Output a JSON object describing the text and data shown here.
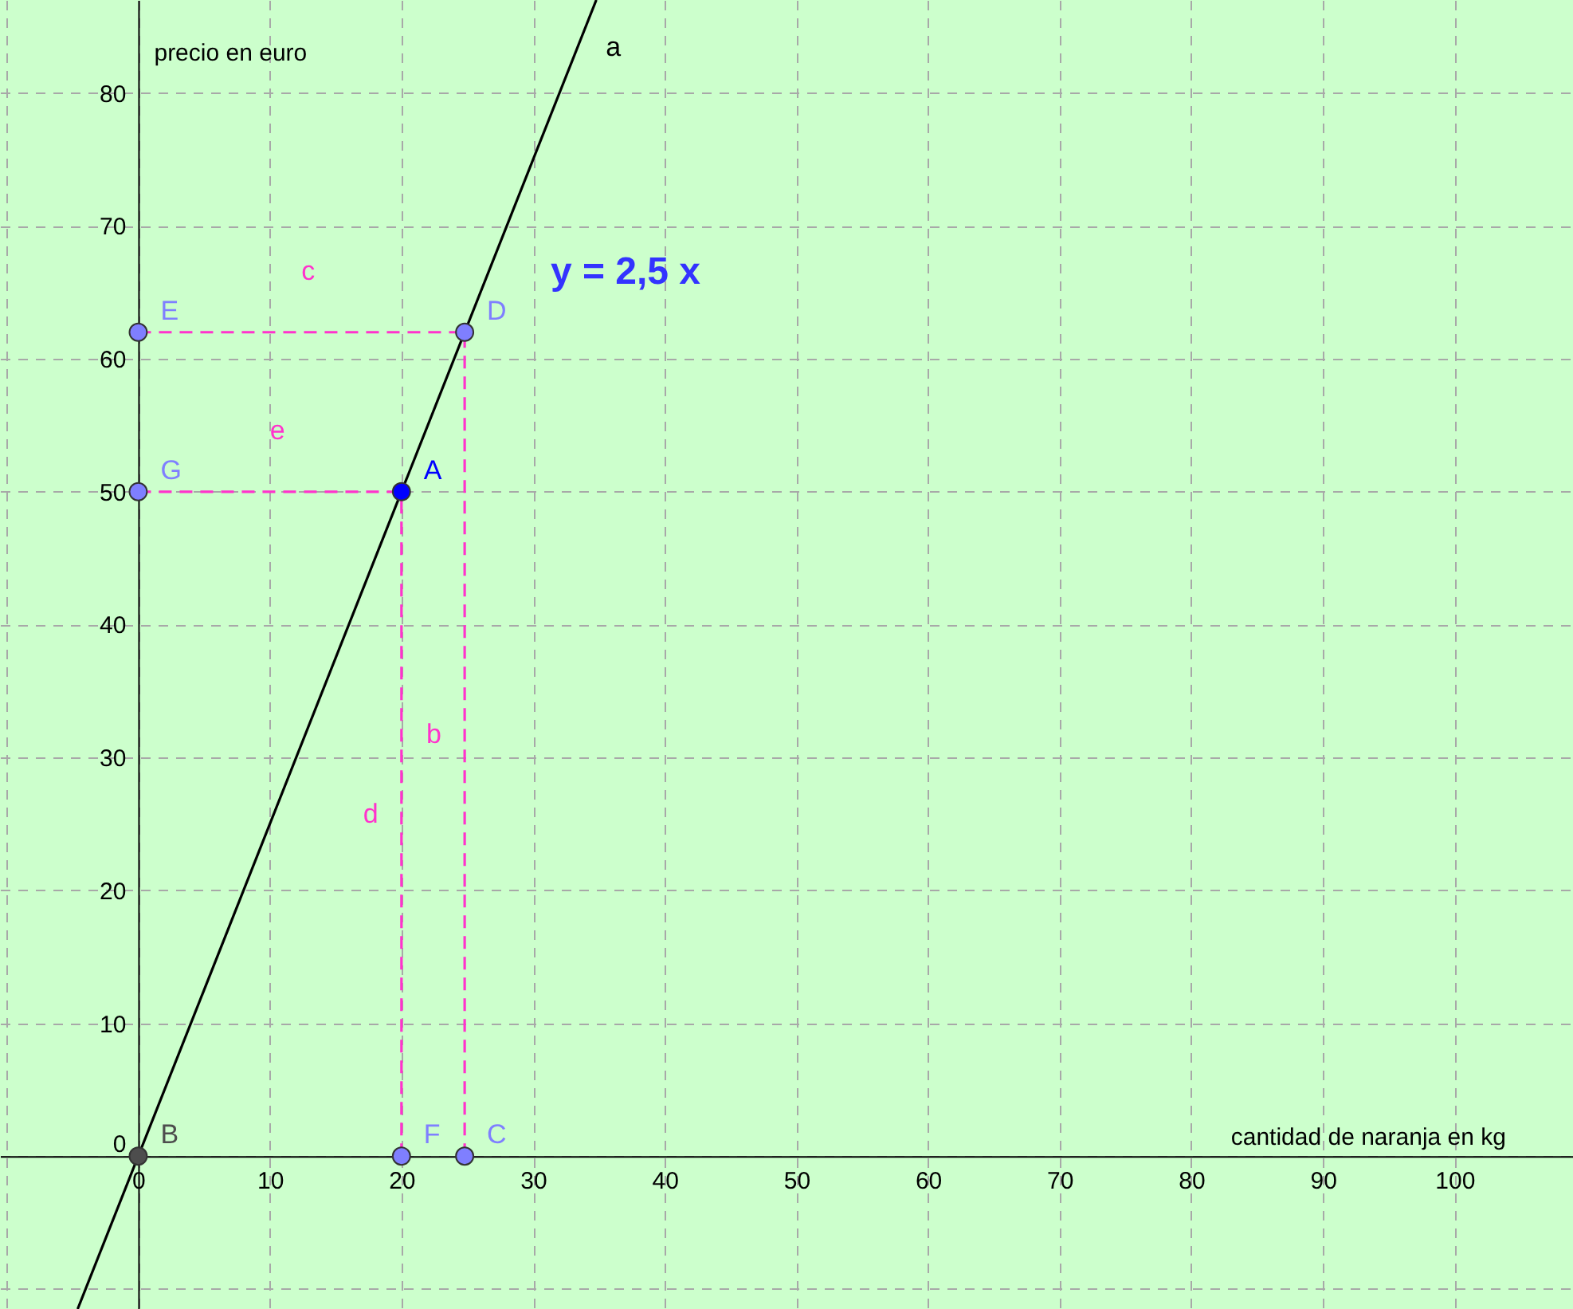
{
  "chart_data": {
    "type": "line",
    "xlabel": "cantidad de naranja en kg",
    "ylabel": "precio en euro",
    "xlim": [
      -10.5,
      109
    ],
    "ylim": [
      -11.5,
      87
    ],
    "xticks": [
      {
        "value": -10,
        "label": null
      },
      0,
      10,
      20,
      30,
      40,
      50,
      60,
      70,
      80,
      90,
      100
    ],
    "yticks": [
      {
        "value": -10,
        "label": null
      },
      0,
      10,
      20,
      30,
      40,
      50,
      60,
      70,
      80
    ],
    "grid": true,
    "series": [
      {
        "name": "a",
        "color": "#000000",
        "line_style": "solid",
        "x": [
          -4.6,
          34.8
        ],
        "values": [
          -11.5,
          87
        ]
      },
      {
        "name": "c",
        "color": "#ff33cc",
        "line_style": "dashed",
        "x": [
          0,
          24.8
        ],
        "values": [
          62,
          62
        ]
      },
      {
        "name": "e",
        "color": "#ff33cc",
        "line_style": "dashed",
        "x": [
          0,
          20
        ],
        "values": [
          50,
          50
        ]
      },
      {
        "name": "d",
        "color": "#ff33cc",
        "line_style": "dashed",
        "x": [
          20,
          20
        ],
        "values": [
          0,
          50
        ]
      },
      {
        "name": "b",
        "color": "#ff33cc",
        "line_style": "dashed",
        "x": [
          24.8,
          24.8
        ],
        "values": [
          0,
          62
        ]
      },
      {
        "type": "scatter",
        "name": "A",
        "marker": "circle",
        "color": "#0000ff",
        "x": [
          20
        ],
        "values": [
          50
        ]
      },
      {
        "type": "scatter",
        "name": "B",
        "marker": "circle",
        "color": "#4d4d4d",
        "x": [
          0
        ],
        "values": [
          0
        ]
      },
      {
        "type": "scatter",
        "name": "C",
        "marker": "circle",
        "color": "#7f7fff",
        "x": [
          24.8
        ],
        "values": [
          0
        ]
      },
      {
        "type": "scatter",
        "name": "D",
        "marker": "circle",
        "color": "#7f7fff",
        "x": [
          24.8
        ],
        "values": [
          62
        ]
      },
      {
        "type": "scatter",
        "name": "E",
        "marker": "circle",
        "color": "#7f7fff",
        "x": [
          0
        ],
        "values": [
          62
        ]
      },
      {
        "type": "scatter",
        "name": "F",
        "marker": "circle",
        "color": "#7f7fff",
        "x": [
          20
        ],
        "values": [
          0
        ]
      },
      {
        "type": "scatter",
        "name": "G",
        "marker": "circle",
        "color": "#7f7fff",
        "x": [
          0
        ],
        "values": [
          50
        ]
      }
    ],
    "annotations": [
      "y = 2,5 x"
    ]
  }
}
